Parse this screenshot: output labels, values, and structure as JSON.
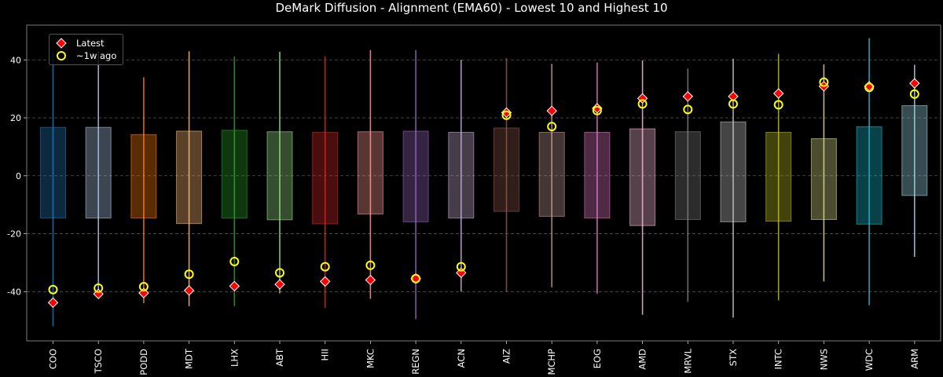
{
  "chart_data": {
    "type": "scatter",
    "title": "DeMark Diffusion - Alignment (EMA60) - Lowest 10 and Highest 10",
    "xlabel": "",
    "ylabel": "",
    "ylim": [
      -57,
      52
    ],
    "yticks": [
      "-40",
      "-20",
      "0",
      "20",
      "40"
    ],
    "grid": true,
    "legend_position": "top-left",
    "legend": {
      "latest": "Latest",
      "week_ago": "~1w ago"
    },
    "categories": [
      "COO",
      "TSCO",
      "PODD",
      "MDT",
      "LHX",
      "ABT",
      "HII",
      "MKC",
      "REGN",
      "ACN",
      "AIZ",
      "MCHP",
      "EOG",
      "AMD",
      "MRVL",
      "STX",
      "INTC",
      "NWS",
      "WDC",
      "ARM"
    ],
    "colors": [
      "#1f77b4",
      "#aec7e8",
      "#ff7f0e",
      "#ffbb78",
      "#2ca02c",
      "#98df8a",
      "#d62728",
      "#ff9896",
      "#9467bd",
      "#c5b0d5",
      "#8c564b",
      "#c49c94",
      "#e377c2",
      "#f7b6d2",
      "#7f7f7f",
      "#c7c7c7",
      "#bcbd22",
      "#dbdb8d",
      "#17becf",
      "#9edae5"
    ],
    "marker_colors": {
      "latest": "#ff0000",
      "latest_edge": "#ffffff",
      "week_ago_edge": "#ffff00"
    },
    "series": [
      {
        "name": "Latest",
        "values": [
          -43.8,
          -40.8,
          -40.5,
          -39.6,
          -38.1,
          -37.5,
          -36.5,
          -36.0,
          -35.5,
          -33.5,
          21.8,
          22.4,
          23.3,
          26.7,
          27.4,
          27.4,
          28.4,
          30.9,
          30.9,
          31.9
        ]
      },
      {
        "name": "~1w ago",
        "values": [
          -39.3,
          -38.8,
          -38.3,
          -34.0,
          -29.6,
          -33.5,
          -31.4,
          -30.9,
          -35.5,
          -31.4,
          20.9,
          17.0,
          22.5,
          24.8,
          22.9,
          24.8,
          24.5,
          32.3,
          30.5,
          28.2
        ]
      }
    ],
    "ranges": [
      {
        "min": -52,
        "max": 42.5,
        "q1": -14.6,
        "q3": 16.7
      },
      {
        "min": -40,
        "max": 43.0,
        "q1": -14.6,
        "q3": 16.7
      },
      {
        "min": -44,
        "max": 34.0,
        "q1": -14.6,
        "q3": 14.2
      },
      {
        "min": -45,
        "max": 43.0,
        "q1": -16.5,
        "q3": 15.4
      },
      {
        "min": -45,
        "max": 41.2,
        "q1": -14.6,
        "q3": 15.7
      },
      {
        "min": -40.6,
        "max": 42.8,
        "q1": -15.2,
        "q3": 15.2
      },
      {
        "min": -45.7,
        "max": 41.3,
        "q1": -16.6,
        "q3": 15.0
      },
      {
        "min": -42.5,
        "max": 43.4,
        "q1": -13.2,
        "q3": 15.2
      },
      {
        "min": -49.5,
        "max": 43.4,
        "q1": -15.9,
        "q3": 15.4
      },
      {
        "min": -40,
        "max": 40.0,
        "q1": -14.6,
        "q3": 15.0
      },
      {
        "min": -40,
        "max": 40.6,
        "q1": -12.3,
        "q3": 16.5
      },
      {
        "min": -38.5,
        "max": 38.6,
        "q1": -14.0,
        "q3": 15.0
      },
      {
        "min": -40.7,
        "max": 39.1,
        "q1": -14.6,
        "q3": 15.0
      },
      {
        "min": -48,
        "max": 39.8,
        "q1": -17.2,
        "q3": 16.2
      },
      {
        "min": -43.5,
        "max": 37.0,
        "q1": -15.1,
        "q3": 15.2
      },
      {
        "min": -49,
        "max": 40.4,
        "q1": -15.9,
        "q3": 18.6
      },
      {
        "min": -43,
        "max": 42.1,
        "q1": -15.7,
        "q3": 15.0
      },
      {
        "min": -36.5,
        "max": 38.4,
        "q1": -15.1,
        "q3": 12.8
      },
      {
        "min": -44.7,
        "max": 47.5,
        "q1": -16.7,
        "q3": 16.9
      },
      {
        "min": -28,
        "max": 38.3,
        "q1": -6.8,
        "q3": 24.2
      }
    ]
  }
}
